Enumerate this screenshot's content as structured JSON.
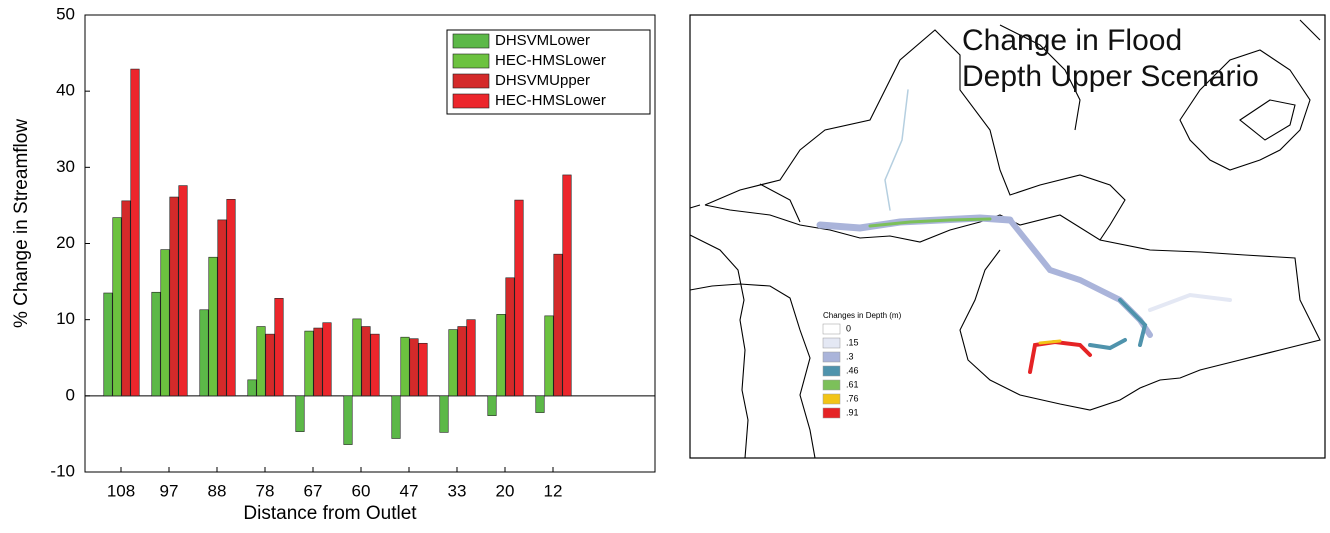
{
  "chart_data": {
    "type": "bar",
    "ylabel": "% Change in Streamflow",
    "xlabel": "Distance from Outlet",
    "categories": [
      "108",
      "97",
      "88",
      "78",
      "67",
      "60",
      "47",
      "33",
      "20",
      "12"
    ],
    "series": [
      {
        "name": "DHSVMLower",
        "color": "#5cb848",
        "values": [
          13.5,
          13.6,
          11.3,
          2.1,
          -4.7,
          -6.4,
          -5.6,
          -4.8,
          -2.6,
          -2.2
        ]
      },
      {
        "name": "HEC-HMSLower",
        "color": "#6cc23f",
        "values": [
          23.4,
          19.2,
          18.2,
          9.1,
          8.5,
          10.1,
          7.7,
          8.7,
          10.7,
          10.5
        ]
      },
      {
        "name": "DHSVMUpper",
        "color": "#d42a2a",
        "values": [
          25.6,
          26.1,
          23.1,
          8.1,
          8.9,
          9.1,
          7.5,
          9.1,
          15.5,
          18.6
        ]
      },
      {
        "name": "HEC-HMSLower",
        "color": "#ec262c",
        "values": [
          42.9,
          27.6,
          25.8,
          12.8,
          9.6,
          8.1,
          6.9,
          10.0,
          25.7,
          29.0
        ]
      }
    ],
    "ylim": [
      -10,
      50
    ],
    "yticks": [
      -10,
      0,
      10,
      20,
      30,
      40,
      50
    ],
    "grid": false,
    "legend": "upper-right"
  },
  "map": {
    "title_lines": [
      "Change in Flood",
      "Depth Upper Scenario"
    ],
    "legend_title": "Changes in  Depth (m)",
    "legend": [
      {
        "label": "0",
        "color": "#ffffff"
      },
      {
        "label": ".15",
        "color": "#e4e8f4"
      },
      {
        "label": ".3",
        "color": "#aab4da"
      },
      {
        "label": ".46",
        "color": "#4f93ac"
      },
      {
        "label": ".61",
        "color": "#7cc05a"
      },
      {
        "label": ".76",
        "color": "#f2c417"
      },
      {
        "label": ".91",
        "color": "#e52325"
      }
    ]
  }
}
